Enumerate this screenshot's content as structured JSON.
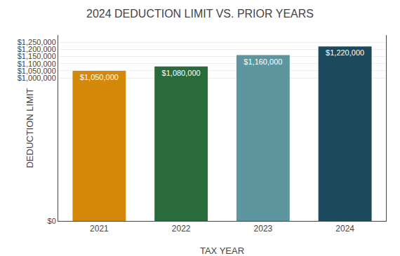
{
  "chart_data": {
    "type": "bar",
    "title": "2024 DEDUCTION LIMIT VS. PRIOR YEARS",
    "xlabel": "TAX YEAR",
    "ylabel": "DEDUCTION LIMIT",
    "categories": [
      "2021",
      "2022",
      "2023",
      "2024"
    ],
    "values": [
      1050000,
      1080000,
      1160000,
      1220000
    ],
    "value_labels": [
      "$1,050,000",
      "$1,080,000",
      "$1,160,000",
      "$1,220,000"
    ],
    "data_labels": true,
    "colors": [
      "#D4880A",
      "#2A6B3C",
      "#5E96A0",
      "#1B4A5C"
    ],
    "ylim": [
      0,
      1300000
    ],
    "yticks": [
      {
        "value": 0,
        "label": "$0"
      },
      {
        "value": 1000000,
        "label": "$1,000,000"
      },
      {
        "value": 1050000,
        "label": "$1,050,000"
      },
      {
        "value": 1100000,
        "label": "$1,100,000"
      },
      {
        "value": 1150000,
        "label": "$1,150,000"
      },
      {
        "value": 1200000,
        "label": "$1,200,000"
      },
      {
        "value": 1250000,
        "label": "$1,250,000"
      }
    ],
    "grid": true
  }
}
